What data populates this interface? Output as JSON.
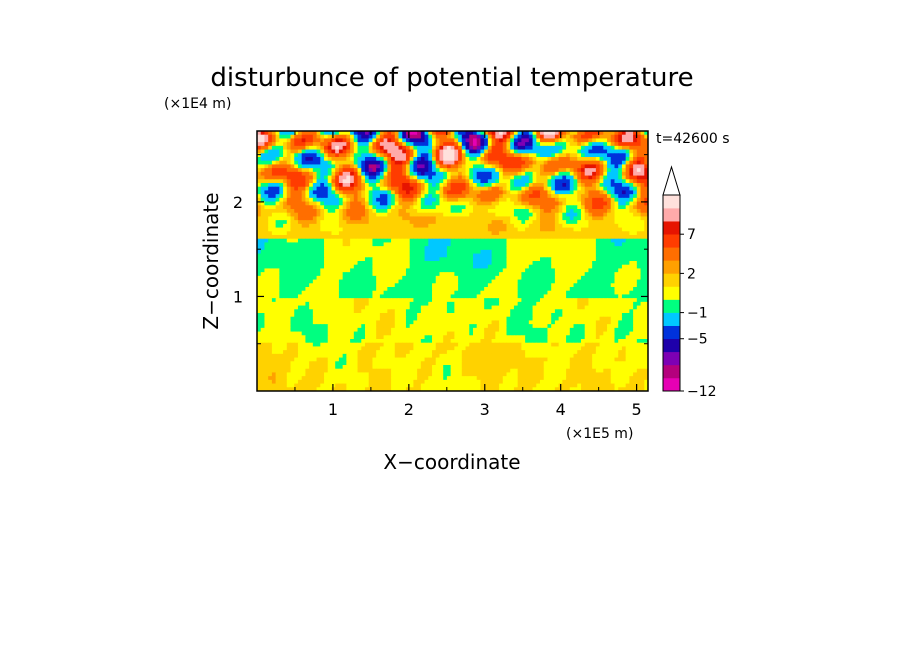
{
  "chart_data": {
    "type": "heatmap",
    "title": "disturbunce of potential temperature",
    "time_label": "t=42600 s",
    "xlabel": "X−coordinate",
    "ylabel": "Z−coordinate",
    "x_scale_label": "(×1E5 m)",
    "y_scale_label": "(×1E4 m)",
    "xlim": [
      0,
      5.15
    ],
    "ylim": [
      0,
      2.75
    ],
    "x_ticks": [
      1,
      2,
      3,
      4,
      5
    ],
    "y_ticks": [
      1,
      2
    ],
    "x_tick_labels": [
      "1",
      "2",
      "3",
      "4",
      "5"
    ],
    "y_tick_labels": [
      "1",
      "2"
    ],
    "colorbar": {
      "levels": [
        -12,
        -10,
        -8,
        -7,
        -5,
        -3,
        -1,
        0,
        1,
        2,
        3,
        5,
        7,
        8,
        10
      ],
      "tick_values": [
        -12,
        -5,
        -1,
        2,
        7
      ],
      "tick_labels": [
        "−12",
        "−5",
        "−1",
        "2",
        "7"
      ],
      "colors": [
        "#e600b4",
        "#b4007d",
        "#7d00b4",
        "#1e00aa",
        "#0032dc",
        "#00c8ff",
        "#00ff80",
        "#ffff00",
        "#ffd200",
        "#ffa000",
        "#ff6e00",
        "#ff3c00",
        "#e61400",
        "#ffaaaa",
        "#ffe1dc"
      ],
      "extend_max": true
    }
  }
}
